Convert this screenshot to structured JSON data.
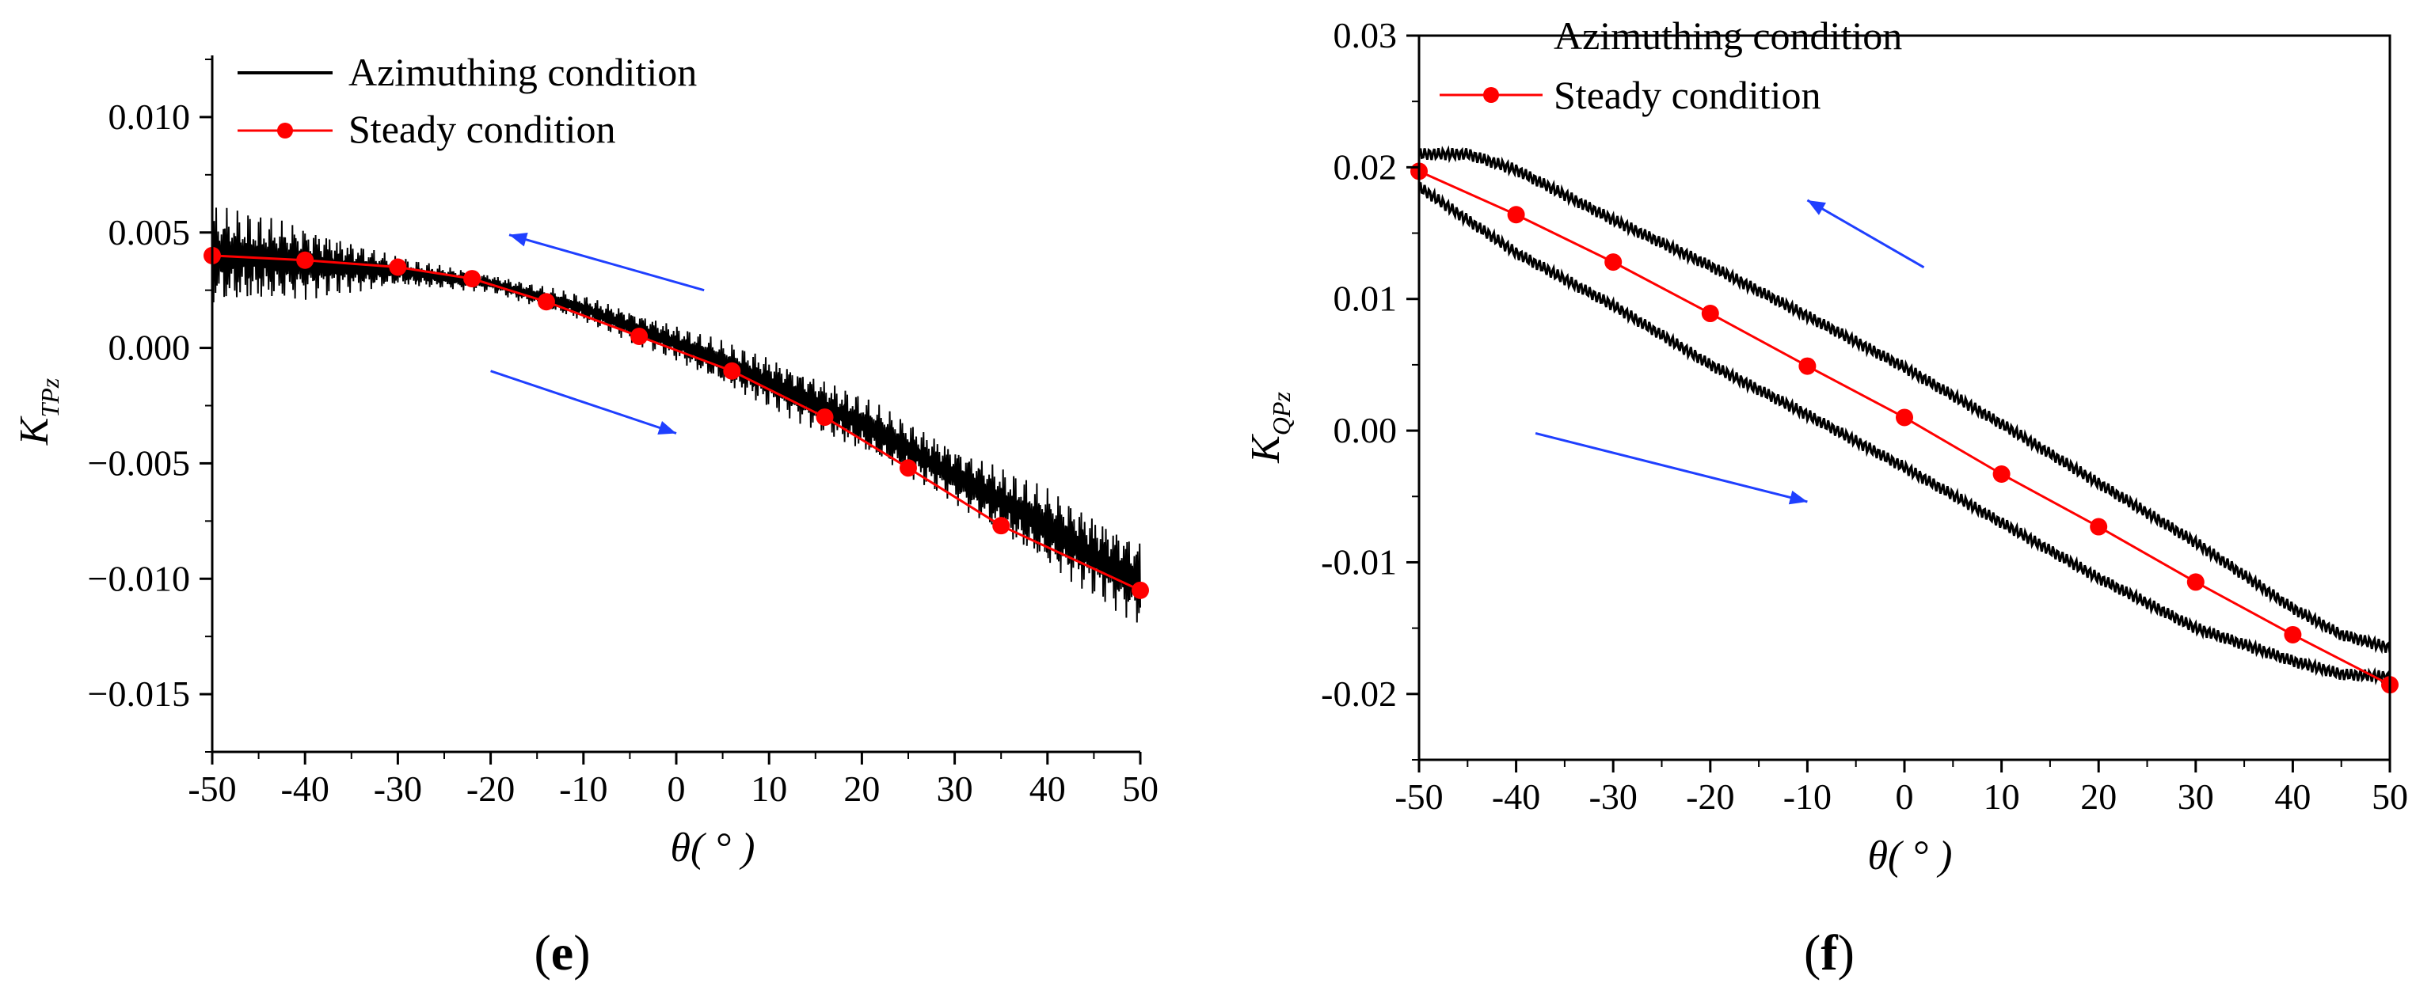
{
  "colors": {
    "azimuthing": "#000000",
    "steady": "#ff0000",
    "arrow": "#1f3fff",
    "axis": "#000000"
  },
  "chart_data": [
    {
      "type": "line",
      "panel_label": "e",
      "xlabel": "θ( ° )",
      "ylabel": "K",
      "ylabel_sub": "TPz",
      "xlim": [
        -50,
        50
      ],
      "ylim": [
        -0.0175,
        0.0125
      ],
      "xticks": [
        -50,
        -40,
        -30,
        -20,
        -10,
        0,
        10,
        20,
        30,
        40,
        50
      ],
      "xtick_labels": [
        "-50",
        "-40",
        "-30",
        "-20",
        "-10",
        "0",
        "10",
        "20",
        "30",
        "40",
        "50"
      ],
      "yticks": [
        0.01,
        0.005,
        0.0,
        -0.005,
        -0.01,
        -0.015
      ],
      "ytick_labels": [
        "0.010",
        "0.005",
        "0.000",
        "−0.005",
        "−0.010",
        "−0.015"
      ],
      "legend": [
        "Azimuthing condition",
        "Steady condition"
      ],
      "series": [
        {
          "name": "Steady condition",
          "x": [
            -50,
            -40,
            -30,
            -22,
            -14,
            -4,
            6,
            16,
            25,
            35,
            50
          ],
          "y": [
            0.004,
            0.0038,
            0.0035,
            0.003,
            0.002,
            0.0005,
            -0.001,
            -0.003,
            -0.0052,
            -0.0077,
            -0.0105
          ]
        },
        {
          "name": "Azimuthing condition",
          "center_x": [
            -50,
            -40,
            -30,
            -20,
            -10,
            0,
            10,
            20,
            30,
            40,
            50
          ],
          "center_y": [
            0.004,
            0.0037,
            0.0033,
            0.0028,
            0.0017,
            0.0002,
            -0.0015,
            -0.0033,
            -0.0055,
            -0.0078,
            -0.0102
          ],
          "amplitude": [
            0.0045,
            0.0033,
            0.0013,
            0.0008,
            0.0012,
            0.0016,
            0.0023,
            0.0025,
            0.0025,
            0.0035,
            0.0038
          ]
        }
      ],
      "arrows": [
        {
          "direction": "left",
          "from": [
            3,
            0.0025
          ],
          "to": [
            -18,
            0.0049
          ]
        },
        {
          "direction": "right",
          "from": [
            -20,
            -0.001
          ],
          "to": [
            0,
            -0.0037
          ]
        }
      ]
    },
    {
      "type": "line",
      "panel_label": "f",
      "xlabel": "θ( ° )",
      "ylabel": "K",
      "ylabel_sub": "QPz",
      "xlim": [
        -50,
        50
      ],
      "ylim": [
        -0.025,
        0.03
      ],
      "xticks": [
        -50,
        -40,
        -30,
        -20,
        -10,
        0,
        10,
        20,
        30,
        40,
        50
      ],
      "xtick_labels": [
        "-50",
        "-40",
        "-30",
        "-20",
        "-10",
        "0",
        "10",
        "20",
        "30",
        "40",
        "50"
      ],
      "yticks": [
        0.03,
        0.02,
        0.01,
        0.0,
        -0.01,
        -0.02
      ],
      "ytick_labels": [
        "0.03",
        "0.02",
        "0.01",
        "0.00",
        "-0.01",
        "-0.02"
      ],
      "legend": [
        "Azimuthing condition",
        "Steady condition"
      ],
      "series": [
        {
          "name": "Steady condition",
          "x": [
            -50,
            -40,
            -30,
            -20,
            -10,
            0,
            10,
            20,
            30,
            40,
            50
          ],
          "y": [
            0.0197,
            0.0164,
            0.0128,
            0.0089,
            0.0049,
            0.001,
            -0.0033,
            -0.0073,
            -0.0115,
            -0.0155,
            -0.0193
          ]
        },
        {
          "name": "Azimuthing condition (upper branch)",
          "x": [
            -50,
            -45,
            -40,
            -30,
            -20,
            -10,
            0,
            10,
            20,
            30,
            40,
            45,
            50
          ],
          "y": [
            0.021,
            0.021,
            0.0198,
            0.016,
            0.0125,
            0.0087,
            0.0048,
            0.0005,
            -0.004,
            -0.0085,
            -0.0135,
            -0.0155,
            -0.0165
          ]
        },
        {
          "name": "Azimuthing condition (lower branch)",
          "x": [
            -50,
            -40,
            -30,
            -20,
            -10,
            0,
            10,
            20,
            30,
            40,
            45,
            50
          ],
          "y": [
            0.0185,
            0.0135,
            0.0095,
            0.005,
            0.0012,
            -0.0028,
            -0.007,
            -0.0112,
            -0.015,
            -0.0175,
            -0.0185,
            -0.0187
          ]
        }
      ],
      "arrows": [
        {
          "direction": "left",
          "from": [
            2,
            0.0124
          ],
          "to": [
            -10,
            0.0175
          ]
        },
        {
          "direction": "right",
          "from": [
            -38,
            -0.0002
          ],
          "to": [
            -10,
            -0.0054
          ]
        }
      ]
    }
  ]
}
